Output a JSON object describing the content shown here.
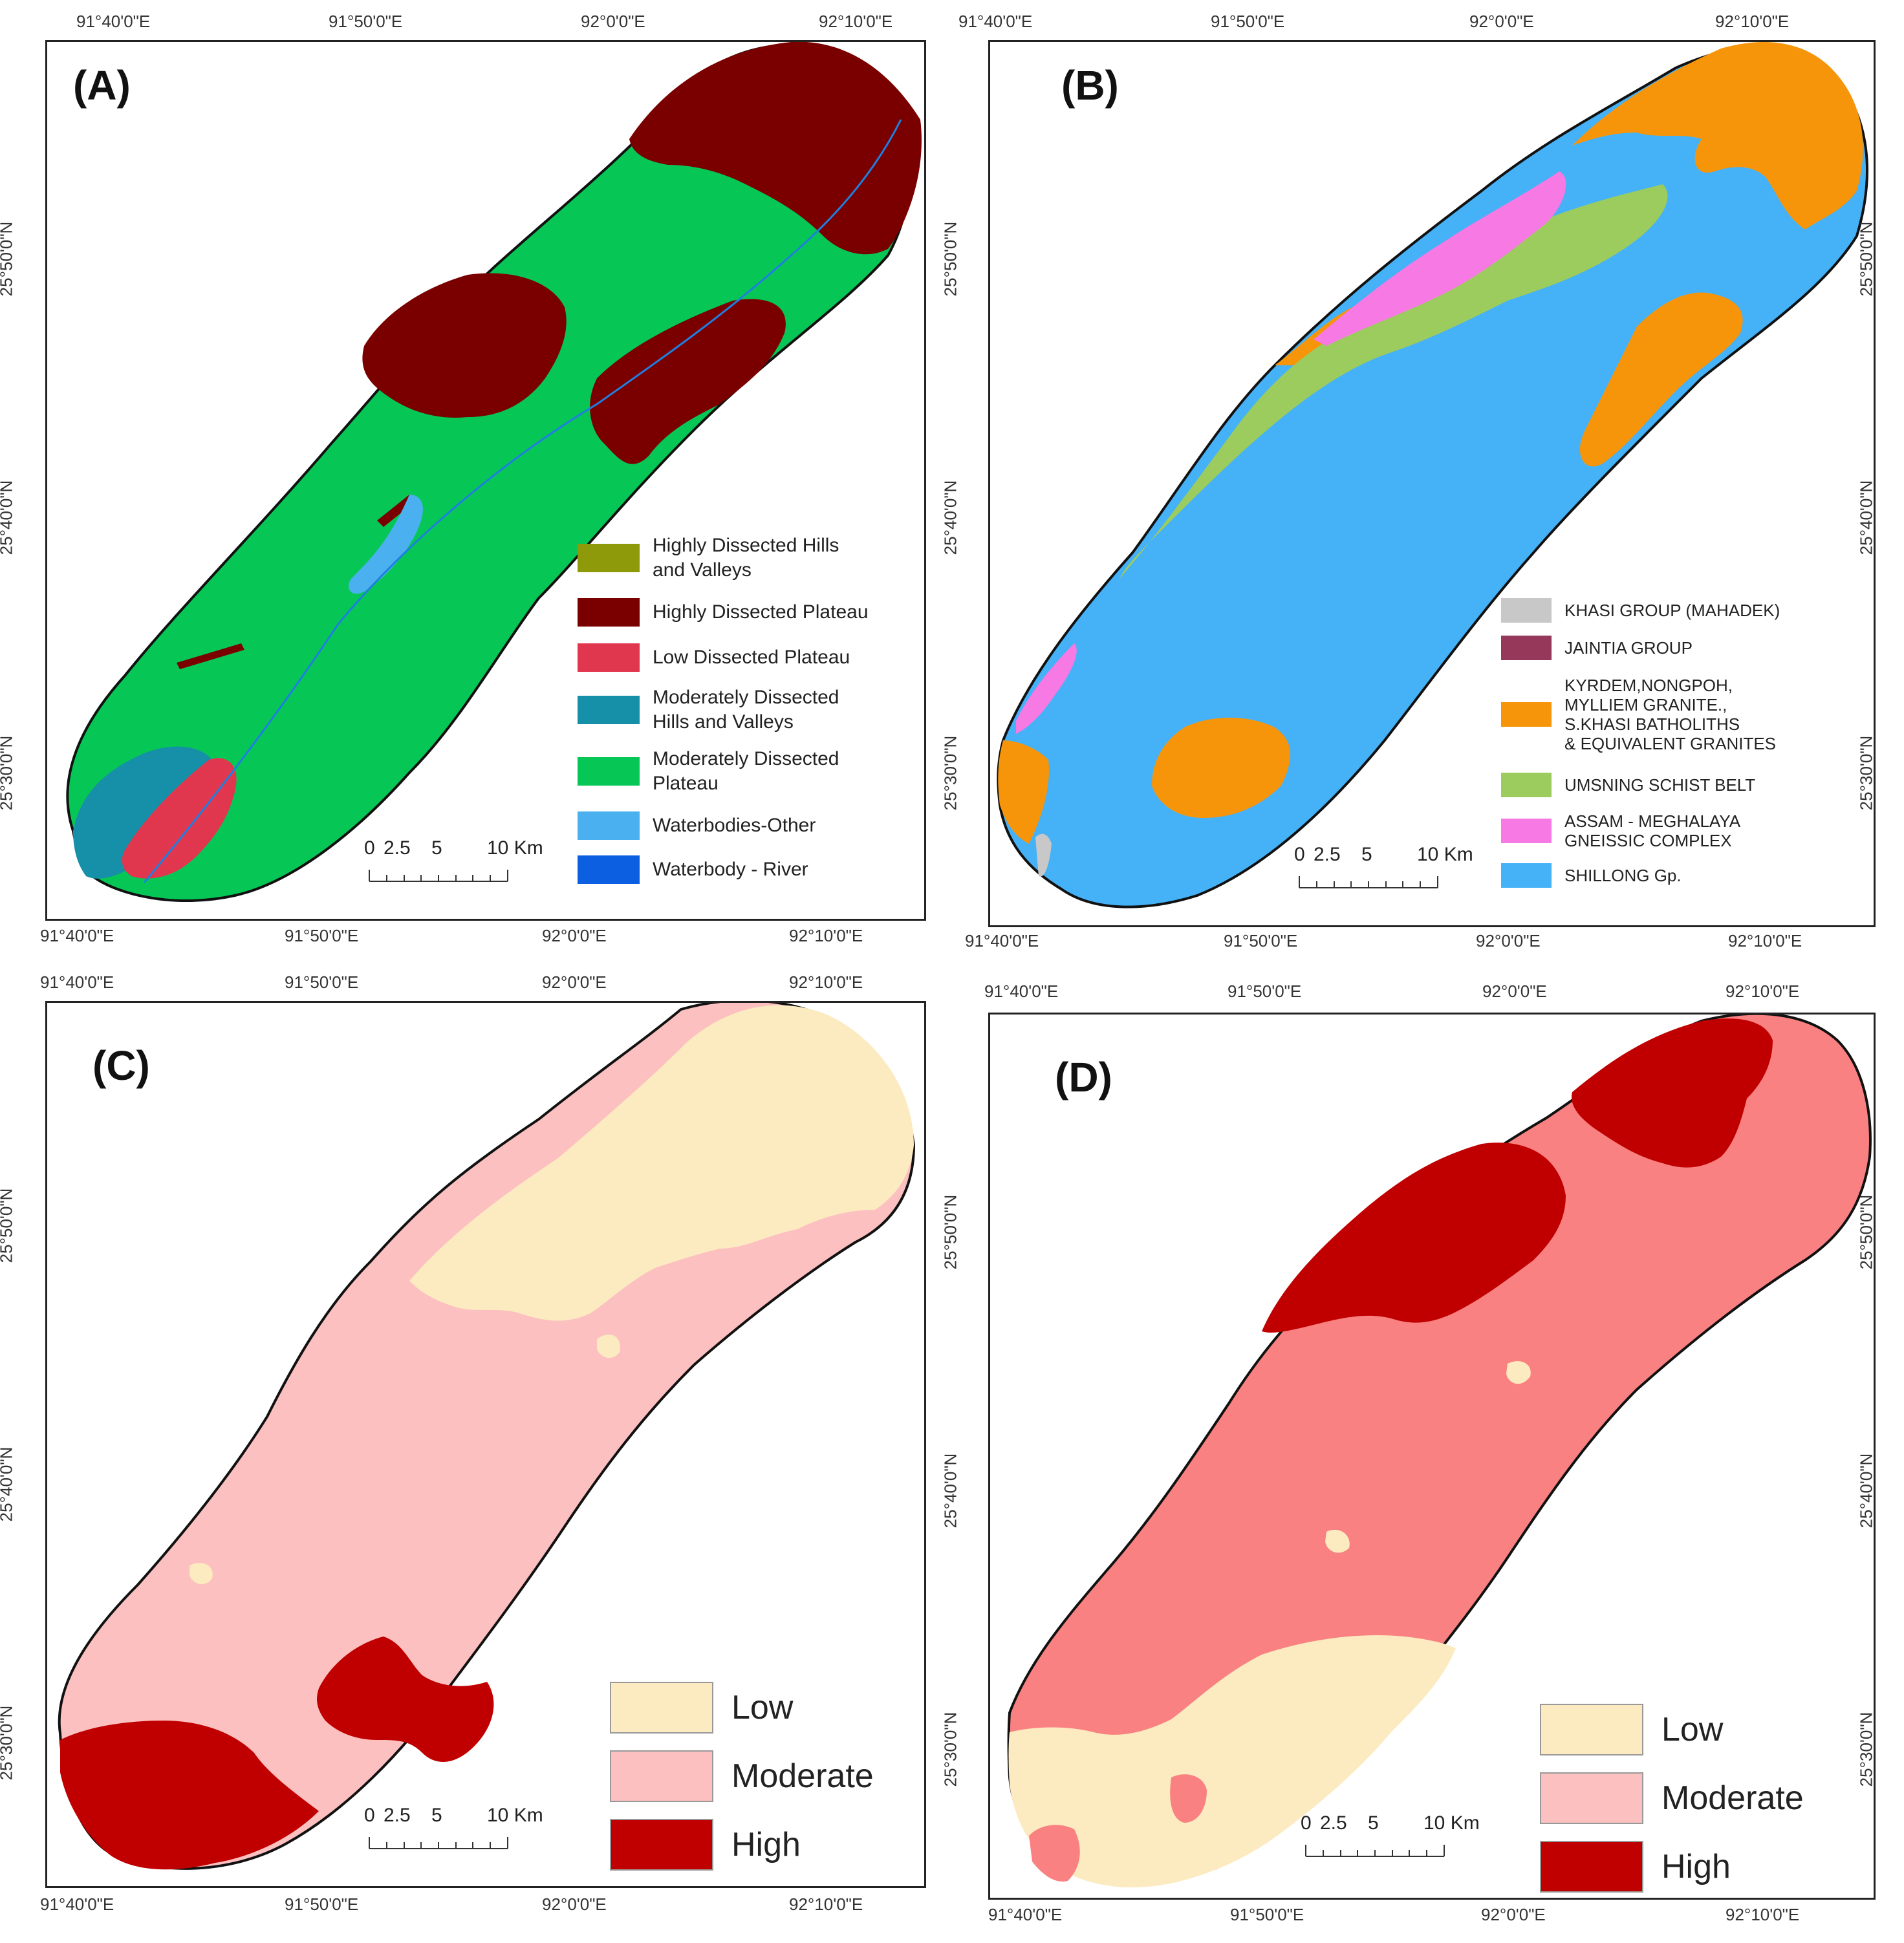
{
  "axes": {
    "top_left": {
      "x_ticks": [
        "91°40'0\"E",
        "91°50'0\"E",
        "92°0'0\"E",
        "92°10'0\"E"
      ],
      "y_ticks": [
        "25°50'0\"N",
        "25°40'0\"N",
        "25°30'0\"N"
      ]
    },
    "top_right": {
      "x_ticks": [
        "91°40'0\"E",
        "91°50'0\"E",
        "92°0'0\"E",
        "92°10'0\"E"
      ],
      "y_ticks": [
        "25°50'0\"N",
        "25°40'0\"N",
        "25°30'0\"N"
      ]
    },
    "bottom_left": {
      "x_ticks": [
        "91°40'0\"E",
        "91°50'0\"E",
        "92°0'0\"E",
        "92°10'0\"E"
      ],
      "y_ticks": [
        "25°50'0\"N",
        "25°40'0\"N",
        "25°30'0\"N"
      ]
    },
    "bottom_right": {
      "x_ticks": [
        "91°40'0\"E",
        "91°50'0\"E",
        "92°0'0\"E",
        "92°10'0\"E"
      ],
      "y_ticks": [
        "25°50'0\"N",
        "25°40'0\"N",
        "25°30'0\"N"
      ]
    }
  },
  "panels": {
    "a": {
      "label": "(A)",
      "legend": [
        {
          "label": "Highly Dissected Hills\nand Valleys",
          "color": "#8f9a0a"
        },
        {
          "label": "Highly Dissected Plateau",
          "color": "#7a0000"
        },
        {
          "label": "Low Dissected Plateau",
          "color": "#e0374f"
        },
        {
          "label": "Moderately Dissected\nHills and Valleys",
          "color": "#1590a8"
        },
        {
          "label": "Moderately Dissected\nPlateau",
          "color": "#06c755"
        },
        {
          "label": "Waterbodies-Other",
          "color": "#4ab0ef"
        },
        {
          "label": "Waterbody - River",
          "color": "#0b5fe0"
        }
      ],
      "scale": {
        "zero": "0",
        "a": "2.5",
        "b": "5",
        "end": "10 Km"
      }
    },
    "b": {
      "label": "(B)",
      "legend": [
        {
          "label": "KHASI GROUP (MAHADEK)",
          "color": "#c8c8c8"
        },
        {
          "label": "JAINTIA GROUP",
          "color": "#96385a"
        },
        {
          "label": "KYRDEM,NONGPOH,\nMYLLIEM GRANITE.,\nS.KHASI BATHOLITHS\n& EQUIVALENT GRANITES",
          "color": "#f7950a"
        },
        {
          "label": "UMSNING SCHIST BELT",
          "color": "#9ccc5e"
        },
        {
          "label": "ASSAM - MEGHALAYA\nGNEISSIC COMPLEX",
          "color": "#f779e3"
        },
        {
          "label": "SHILLONG Gp.",
          "color": "#45b1f7"
        }
      ],
      "scale": {
        "zero": "0",
        "a": "2.5",
        "b": "5",
        "end": "10 Km"
      }
    },
    "c": {
      "label": "(C)",
      "legend": [
        {
          "label": "Low",
          "color": "#fcebc0"
        },
        {
          "label": "Moderate",
          "color": "#fcc0c0"
        },
        {
          "label": "High",
          "color": "#c00000"
        }
      ],
      "scale": {
        "zero": "0",
        "a": "2.5",
        "b": "5",
        "end": "10 Km"
      }
    },
    "d": {
      "label": "(D)",
      "legend": [
        {
          "label": "Low",
          "color": "#fcebc0"
        },
        {
          "label": "Moderate",
          "color": "#fcc0c0"
        },
        {
          "label": "High",
          "color": "#c00000"
        }
      ],
      "scale": {
        "zero": "0",
        "a": "2.5",
        "b": "5",
        "end": "10 Km"
      }
    }
  }
}
